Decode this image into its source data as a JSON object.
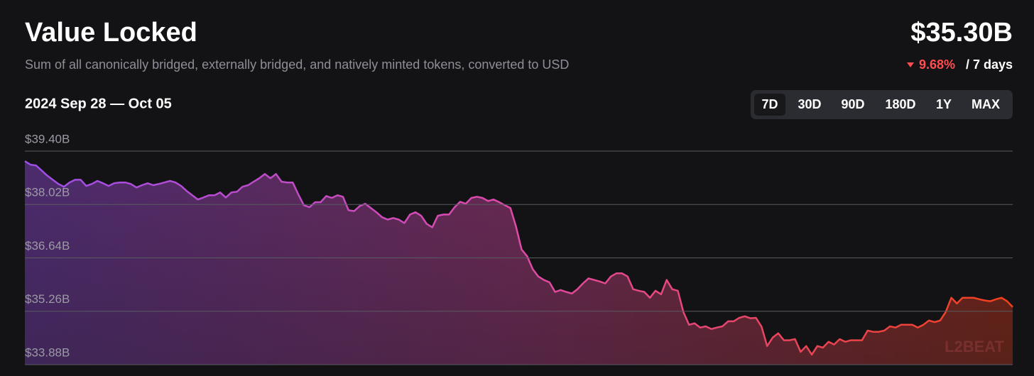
{
  "header": {
    "title": "Value Locked",
    "subtitle": "Sum of all canonically bridged, externally bridged, and natively minted tokens, converted to USD",
    "value": "$35.30B",
    "change": "9.68%",
    "period": "/ 7 days"
  },
  "controls": {
    "range_label": "2024 Sep 28 — Oct 05",
    "ranges": [
      "7D",
      "30D",
      "90D",
      "180D",
      "1Y",
      "MAX"
    ],
    "selected": 0
  },
  "chart_data": {
    "type": "area",
    "values": [
      39.14,
      39.05,
      39.03,
      38.9,
      38.77,
      38.66,
      38.55,
      38.48,
      38.59,
      38.66,
      38.66,
      38.5,
      38.55,
      38.63,
      38.57,
      38.5,
      38.57,
      38.59,
      38.59,
      38.55,
      38.46,
      38.52,
      38.57,
      38.52,
      38.55,
      38.59,
      38.63,
      38.59,
      38.5,
      38.37,
      38.26,
      38.15,
      38.2,
      38.26,
      38.26,
      38.33,
      38.2,
      38.33,
      38.35,
      38.48,
      38.52,
      38.61,
      38.7,
      38.81,
      38.7,
      38.81,
      38.61,
      38.59,
      38.59,
      38.28,
      38.0,
      37.95,
      38.08,
      38.08,
      38.24,
      38.19,
      38.26,
      38.22,
      37.87,
      37.85,
      37.98,
      38.04,
      37.93,
      37.82,
      37.69,
      37.63,
      37.67,
      37.63,
      37.54,
      37.76,
      37.82,
      37.73,
      37.52,
      37.43,
      37.73,
      37.76,
      37.76,
      37.95,
      38.09,
      38.04,
      38.19,
      38.22,
      38.19,
      38.11,
      38.15,
      38.08,
      38.0,
      37.93,
      37.45,
      36.86,
      36.68,
      36.35,
      36.16,
      36.07,
      36.01,
      35.76,
      35.81,
      35.76,
      35.72,
      35.83,
      35.98,
      36.11,
      36.07,
      36.03,
      35.98,
      36.16,
      36.24,
      36.24,
      36.16,
      35.83,
      35.79,
      35.76,
      35.61,
      35.79,
      35.7,
      36.07,
      35.83,
      35.79,
      35.24,
      34.91,
      34.95,
      34.84,
      34.87,
      34.8,
      34.84,
      34.87,
      35.0,
      35.0,
      35.09,
      35.13,
      35.08,
      35.09,
      34.86,
      34.36,
      34.58,
      34.69,
      34.51,
      34.51,
      34.54,
      34.21,
      34.36,
      34.14,
      34.36,
      34.32,
      34.47,
      34.4,
      34.54,
      34.47,
      34.51,
      34.51,
      34.51,
      34.76,
      34.73,
      34.73,
      34.76,
      34.87,
      34.84,
      34.91,
      34.91,
      34.91,
      34.84,
      34.91,
      35.02,
      34.98,
      35.02,
      35.24,
      35.61,
      35.46,
      35.61,
      35.61,
      35.61,
      35.57,
      35.54,
      35.52,
      35.57,
      35.61,
      35.52,
      35.37
    ],
    "ylim": [
      33.88,
      39.4
    ],
    "yticks": [
      {
        "value": 33.88,
        "label": "$33.88B"
      },
      {
        "value": 35.26,
        "label": "$35.26B"
      },
      {
        "value": 36.64,
        "label": "$36.64B"
      },
      {
        "value": 38.02,
        "label": "$38.02B"
      },
      {
        "value": 39.4,
        "label": "$39.40B"
      }
    ],
    "grid": true,
    "colors": [
      "#9c4ee8",
      "#e04aa8",
      "#f2401c"
    ],
    "watermark": "L2BEAT"
  }
}
